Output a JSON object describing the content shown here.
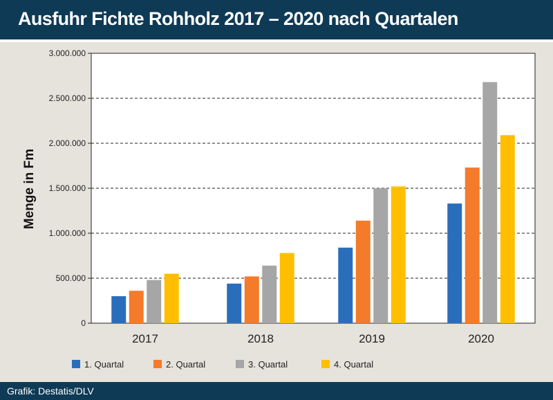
{
  "title": "Ausfuhr Fichte Rohholz 2017 – 2020 nach Quartalen",
  "source": "Grafik: Destatis/DLV",
  "chart_data": {
    "type": "bar",
    "title": "Ausfuhr Fichte Rohholz 2017 – 2020 nach Quartalen",
    "xlabel": "",
    "ylabel": "Menge in Fm",
    "categories": [
      "2017",
      "2018",
      "2019",
      "2020"
    ],
    "ylim": [
      0,
      3000000
    ],
    "yticks": [
      0,
      500000,
      1000000,
      1500000,
      2000000,
      2500000,
      3000000
    ],
    "ytick_labels": [
      "0",
      "500.000",
      "1.000.000",
      "1.500.000",
      "2.000.000",
      "2.500.000",
      "3.000.000"
    ],
    "grid": "horizontal dashed",
    "legend": "bottom",
    "series": [
      {
        "name": "1. Quartal",
        "color": "#2a6ebb",
        "values": [
          300000,
          440000,
          840000,
          1330000
        ]
      },
      {
        "name": "2. Quartal",
        "color": "#f47b2a",
        "values": [
          360000,
          520000,
          1140000,
          1730000
        ]
      },
      {
        "name": "3. Quartal",
        "color": "#a6a6a6",
        "values": [
          480000,
          640000,
          1500000,
          2680000
        ]
      },
      {
        "name": "4. Quartal",
        "color": "#ffbf00",
        "values": [
          550000,
          780000,
          1520000,
          2090000
        ]
      }
    ]
  }
}
